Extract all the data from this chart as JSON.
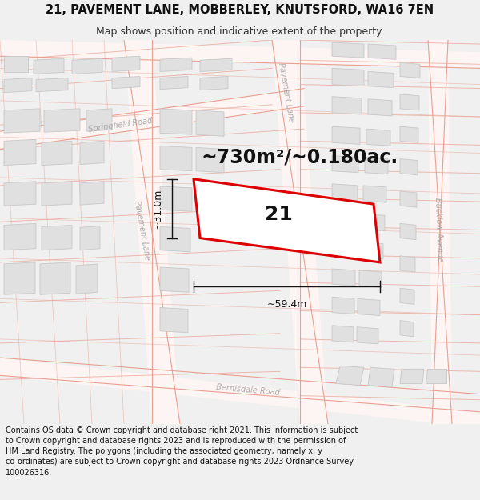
{
  "title_line1": "21, PAVEMENT LANE, MOBBERLEY, KNUTSFORD, WA16 7EN",
  "title_line2": "Map shows position and indicative extent of the property.",
  "area_label": "~730m²/~0.180ac.",
  "plot_number": "21",
  "width_label": "~59.4m",
  "height_label": "~31.0m",
  "footer_text": "Contains OS data © Crown copyright and database right 2021. This information is subject to Crown copyright and database rights 2023 and is reproduced with the permission of HM Land Registry. The polygons (including the associated geometry, namely x, y co-ordinates) are subject to Crown copyright and database rights 2023 Ordnance Survey 100026316.",
  "bg_color": "#f0f0f0",
  "map_bg": "#ffffff",
  "road_outline": "#e8a090",
  "road_fill": "#f8f8f8",
  "building_fill": "#e0e0e0",
  "building_edge": "#c8c8c8",
  "highlight_edge": "#dd0000",
  "dim_color": "#111111",
  "road_label_color": "#aaaaaa",
  "title_fontsize": 10.5,
  "subtitle_fontsize": 9,
  "area_fontsize": 17,
  "plot_num_fontsize": 18,
  "dim_fontsize": 9,
  "road_label_fontsize": 7,
  "footer_fontsize": 7
}
